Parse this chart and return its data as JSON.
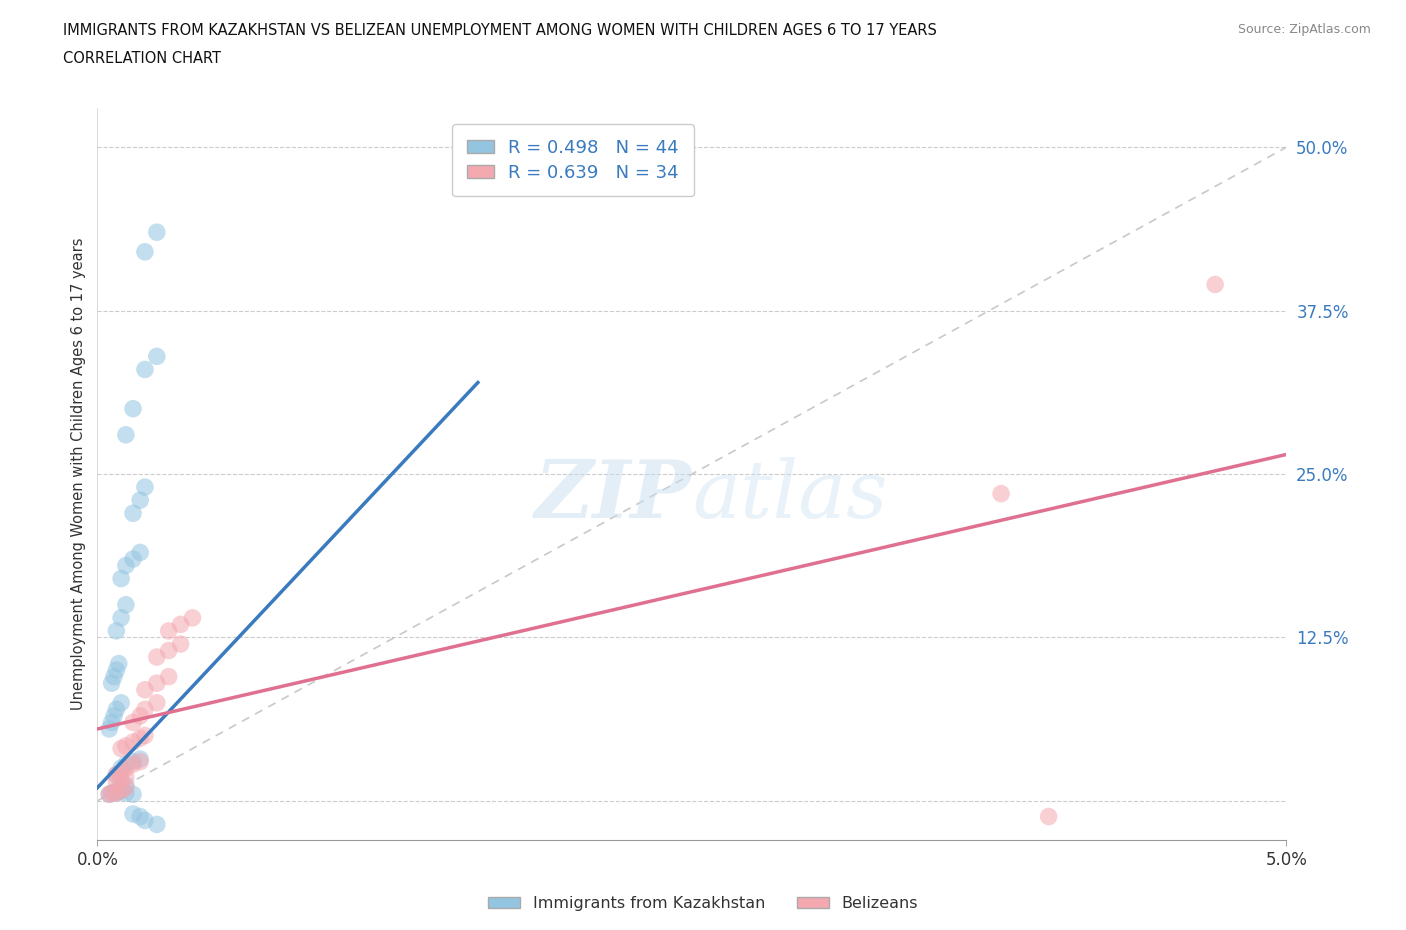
{
  "title_line1": "IMMIGRANTS FROM KAZAKHSTAN VS BELIZEAN UNEMPLOYMENT AMONG WOMEN WITH CHILDREN AGES 6 TO 17 YEARS",
  "title_line2": "CORRELATION CHART",
  "source": "Source: ZipAtlas.com",
  "ylabel": "Unemployment Among Women with Children Ages 6 to 17 years",
  "xlim": [
    0.0,
    0.05
  ],
  "ylim": [
    -0.03,
    0.53
  ],
  "ytick_positions": [
    0.0,
    0.125,
    0.25,
    0.375,
    0.5
  ],
  "ytick_labels": [
    "",
    "12.5%",
    "25.0%",
    "37.5%",
    "50.0%"
  ],
  "xtick_positions": [
    0.0,
    0.05
  ],
  "xtick_labels": [
    "0.0%",
    "5.0%"
  ],
  "watermark": "ZIPatlas",
  "blue_R": 0.498,
  "blue_N": 44,
  "pink_R": 0.639,
  "pink_N": 34,
  "blue_color": "#93c4e0",
  "pink_color": "#f4a8b0",
  "blue_line_color": "#3a7bbf",
  "pink_line_color": "#e07090",
  "diagonal_color": "#bbbbbb",
  "legend_label_blue": "Immigrants from Kazakhstan",
  "legend_label_pink": "Belizeans",
  "blue_scatter_x": [
    0.0008,
    0.001,
    0.0012,
    0.0015,
    0.0018,
    0.0008,
    0.001,
    0.0012,
    0.0005,
    0.0006,
    0.0008,
    0.0009,
    0.001,
    0.0012,
    0.0015,
    0.0005,
    0.0006,
    0.0007,
    0.0008,
    0.001,
    0.0006,
    0.0007,
    0.0008,
    0.0009,
    0.0008,
    0.001,
    0.0012,
    0.001,
    0.0012,
    0.0015,
    0.0018,
    0.0015,
    0.0018,
    0.002,
    0.0012,
    0.0015,
    0.002,
    0.0025,
    0.0015,
    0.0018,
    0.002,
    0.0025,
    0.002,
    0.0025
  ],
  "blue_scatter_y": [
    0.02,
    0.025,
    0.028,
    0.03,
    0.032,
    0.008,
    0.01,
    0.012,
    0.005,
    0.006,
    0.006,
    0.007,
    0.008,
    0.006,
    0.005,
    0.055,
    0.06,
    0.065,
    0.07,
    0.075,
    0.09,
    0.095,
    0.1,
    0.105,
    0.13,
    0.14,
    0.15,
    0.17,
    0.18,
    0.185,
    0.19,
    0.22,
    0.23,
    0.24,
    0.28,
    0.3,
    0.33,
    0.34,
    -0.01,
    -0.012,
    -0.015,
    -0.018,
    0.42,
    0.435
  ],
  "pink_scatter_x": [
    0.0005,
    0.0006,
    0.0008,
    0.001,
    0.0012,
    0.0008,
    0.001,
    0.0012,
    0.0008,
    0.001,
    0.0012,
    0.0015,
    0.0018,
    0.001,
    0.0012,
    0.0015,
    0.0018,
    0.002,
    0.0015,
    0.0018,
    0.002,
    0.0025,
    0.002,
    0.0025,
    0.003,
    0.0025,
    0.003,
    0.0035,
    0.003,
    0.0035,
    0.004,
    0.038,
    0.04,
    0.047
  ],
  "pink_scatter_y": [
    0.005,
    0.006,
    0.006,
    0.008,
    0.01,
    0.015,
    0.016,
    0.018,
    0.02,
    0.022,
    0.025,
    0.028,
    0.03,
    0.04,
    0.042,
    0.045,
    0.048,
    0.05,
    0.06,
    0.065,
    0.07,
    0.075,
    0.085,
    0.09,
    0.095,
    0.11,
    0.115,
    0.12,
    0.13,
    0.135,
    0.14,
    0.235,
    -0.012,
    0.395
  ],
  "background_color": "#ffffff",
  "grid_color": "#cccccc"
}
